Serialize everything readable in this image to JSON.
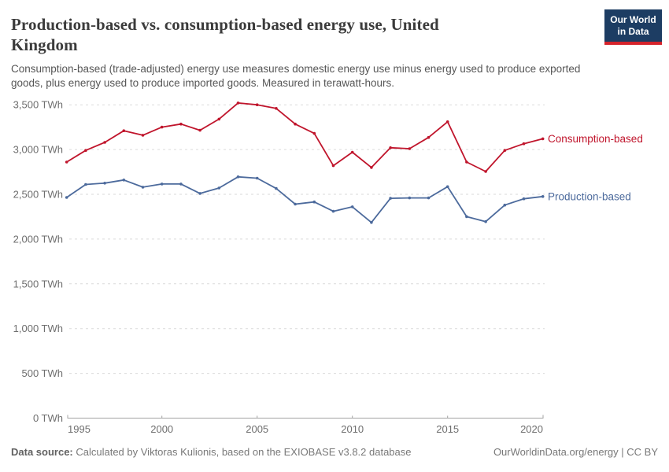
{
  "header": {
    "title_line1": "Production-based vs. consumption-based energy use, United",
    "title_line2": "Kingdom",
    "subtitle_line1": "Consumption-based (trade-adjusted) energy use measures domestic energy use minus energy used to produce exported",
    "subtitle_line2": "goods, plus energy used to produce imported goods. Measured in terawatt-hours.",
    "logo_line1": "Our World",
    "logo_line2": "in Data",
    "logo_bg_color": "#1d3d63",
    "logo_stripe_color": "#d5232b"
  },
  "chart_data": {
    "type": "line",
    "title": "Production-based vs. consumption-based energy use, United Kingdom",
    "unit": "TWh",
    "xlim": [
      1995,
      2020
    ],
    "ylim": [
      0,
      3500
    ],
    "grid": "horizontal-dashed",
    "legend_position": "right-end-labels",
    "x": [
      1995,
      1996,
      1997,
      1998,
      1999,
      2000,
      2001,
      2002,
      2003,
      2004,
      2005,
      2006,
      2007,
      2008,
      2009,
      2010,
      2011,
      2012,
      2013,
      2014,
      2015,
      2016,
      2017,
      2018,
      2019,
      2020
    ],
    "series": [
      {
        "name": "Consumption-based",
        "color": "#c0152c",
        "values": [
          2860,
          2990,
          3080,
          3210,
          3160,
          3250,
          3285,
          3215,
          3340,
          3520,
          3500,
          3460,
          3285,
          3180,
          2820,
          2970,
          2800,
          3020,
          3010,
          3135,
          3310,
          2860,
          2755,
          2990,
          3065,
          3120
        ]
      },
      {
        "name": "Production-based",
        "color": "#4c6a9c",
        "values": [
          2465,
          2610,
          2625,
          2660,
          2580,
          2615,
          2615,
          2510,
          2570,
          2695,
          2680,
          2565,
          2390,
          2415,
          2310,
          2360,
          2185,
          2455,
          2460,
          2460,
          2585,
          2250,
          2195,
          2380,
          2450,
          2475
        ]
      }
    ],
    "y_ticks": [
      {
        "value": 0,
        "label": "0 TWh"
      },
      {
        "value": 500,
        "label": "500 TWh"
      },
      {
        "value": 1000,
        "label": "1,000 TWh"
      },
      {
        "value": 1500,
        "label": "1,500 TWh"
      },
      {
        "value": 2000,
        "label": "2,000 TWh"
      },
      {
        "value": 2500,
        "label": "2,500 TWh"
      },
      {
        "value": 3000,
        "label": "3,000 TWh"
      },
      {
        "value": 3500,
        "label": "3,500 TWh"
      }
    ],
    "x_ticks": [
      {
        "value": 1995,
        "label": "1995",
        "anchor": "start"
      },
      {
        "value": 2000,
        "label": "2000",
        "anchor": "middle"
      },
      {
        "value": 2005,
        "label": "2005",
        "anchor": "middle"
      },
      {
        "value": 2010,
        "label": "2010",
        "anchor": "middle"
      },
      {
        "value": 2015,
        "label": "2015",
        "anchor": "middle"
      },
      {
        "value": 2020,
        "label": "2020",
        "anchor": "end"
      }
    ]
  },
  "footer": {
    "source_label": "Data source:",
    "source_text": " Calculated by Viktoras Kulionis, based on the EXIOBASE v3.8.2 database",
    "credit": "OurWorldinData.org/energy | CC BY"
  }
}
